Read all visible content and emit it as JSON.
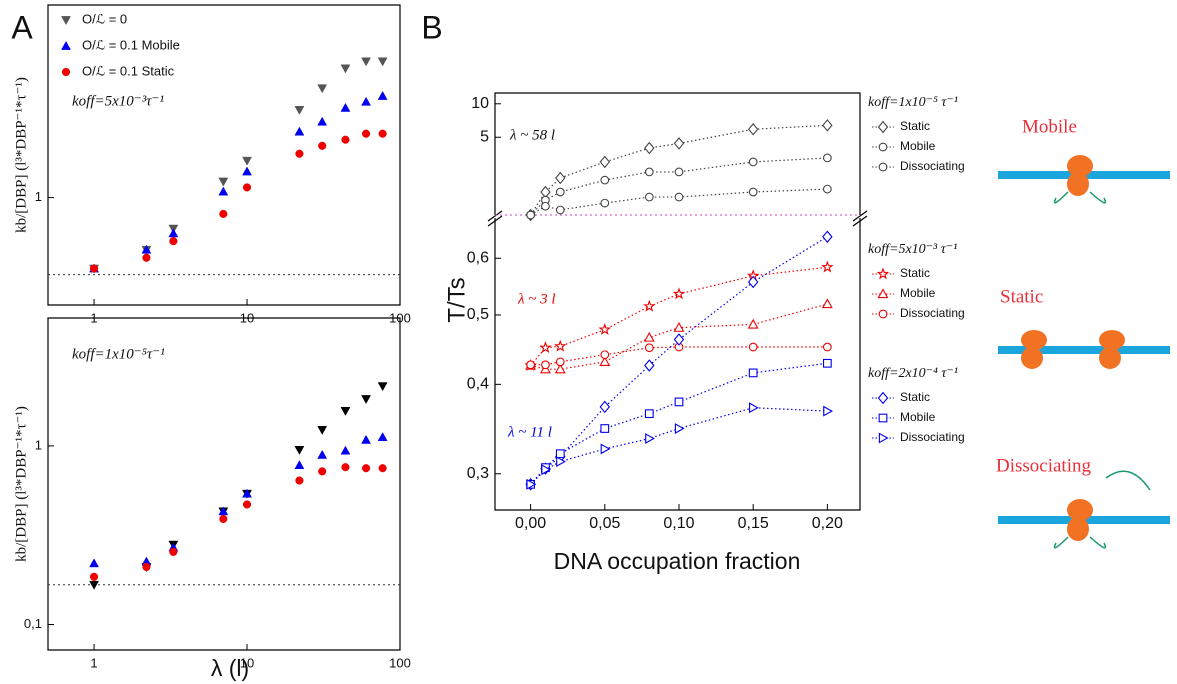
{
  "panel_labels": [
    "A",
    "B"
  ],
  "diagram": {
    "labels": [
      "Mobile",
      "Static",
      "Dissociating"
    ]
  },
  "chart_data": [
    {
      "type": "scatter",
      "xscale": "log",
      "yscale": "log",
      "x": [
        1,
        2.2,
        3.3,
        7,
        10,
        22,
        31,
        44,
        60,
        77
      ],
      "xlim": [
        0.5,
        100
      ],
      "ylim": [
        0.25,
        12
      ],
      "xticks": [
        1,
        10,
        100
      ],
      "yticks": [
        1
      ],
      "ylabel": "kb/[DBP] (l³*DBP⁻¹*τ⁻¹)",
      "annotation": "koff=5x10⁻³τ⁻¹",
      "hline": 0.37,
      "legend": "upper left",
      "series": [
        {
          "name": "O/ℒ = 0",
          "color": "#555555",
          "marker": "triangle-down",
          "values": [
            0.4,
            0.51,
            0.67,
            1.23,
            1.61,
            3.1,
            4.1,
            5.3,
            5.8,
            5.8
          ]
        },
        {
          "name": "O/ℒ = 0.1 Mobile",
          "color": "#0000ee",
          "marker": "triangle-up",
          "values": [
            0.4,
            0.51,
            0.63,
            1.08,
            1.4,
            2.34,
            2.66,
            3.18,
            3.44,
            3.71
          ]
        },
        {
          "name": "O/ℒ = 0.1 Static",
          "color": "#ee0000",
          "marker": "circle",
          "values": [
            0.4,
            0.46,
            0.57,
            0.81,
            1.14,
            1.76,
            1.95,
            2.11,
            2.28,
            2.28
          ]
        }
      ]
    },
    {
      "type": "scatter",
      "xscale": "log",
      "yscale": "log",
      "x": [
        1,
        2.2,
        3.3,
        7,
        10,
        22,
        31,
        44,
        60,
        77
      ],
      "xlim": [
        0.5,
        100
      ],
      "ylim": [
        0.072,
        5.2
      ],
      "xticks": [
        1,
        10,
        100
      ],
      "yticks": [
        {
          "value": 0.1,
          "label": "0,1"
        },
        1
      ],
      "xlabel": "λ (l)",
      "ylabel": "kb/[DBP] (l³*DBP⁻¹*τ⁻¹)",
      "annotation": "koff=1x10⁻⁵τ⁻¹",
      "hline": 0.167,
      "series": [
        {
          "color": "#000000",
          "marker": "triangle-down",
          "values": [
            0.167,
            0.21,
            0.28,
            0.43,
            0.54,
            0.95,
            1.23,
            1.57,
            1.83,
            2.16
          ]
        },
        {
          "color": "#0000ee",
          "marker": "triangle-up",
          "values": [
            0.22,
            0.225,
            0.27,
            0.43,
            0.54,
            0.78,
            0.89,
            0.94,
            1.08,
            1.12
          ]
        },
        {
          "color": "#ee0000",
          "marker": "circle",
          "values": [
            0.185,
            0.21,
            0.255,
            0.39,
            0.47,
            0.64,
            0.72,
            0.76,
            0.75,
            0.75
          ]
        }
      ]
    },
    {
      "type": "line",
      "yscale": "log",
      "x": [
        0,
        0.01,
        0.02,
        0.05,
        0.08,
        0.1,
        0.15,
        0.2
      ],
      "xlim": [
        -0.024,
        0.222
      ],
      "ylim": [
        1,
        12.5
      ],
      "yticks": [
        5,
        10
      ],
      "hline": 1,
      "legend_title": "koff=1x10⁻⁵ τ⁻¹",
      "annotation": "λ ~ 58 l",
      "series": [
        {
          "name": "Static",
          "color": "#444444",
          "marker": "diamond",
          "values": [
            1.0,
            1.61,
            2.15,
            3.0,
            4.0,
            4.4,
            5.9,
            6.4
          ]
        },
        {
          "name": "Mobile",
          "color": "#444444",
          "marker": "circle",
          "values": [
            1.0,
            1.36,
            1.61,
            2.06,
            2.44,
            2.44,
            3.0,
            3.26
          ]
        },
        {
          "name": "Dissociating",
          "color": "#444444",
          "marker": "circle",
          "values": [
            1.0,
            1.2,
            1.11,
            1.28,
            1.45,
            1.45,
            1.61,
            1.71
          ]
        }
      ]
    },
    {
      "type": "line",
      "yscale": "log",
      "x": [
        0,
        0.01,
        0.02,
        0.05,
        0.08,
        0.1,
        0.15,
        0.2
      ],
      "xlim": [
        -0.024,
        0.222
      ],
      "ylim": [
        0.267,
        0.683
      ],
      "xticks": [
        {
          "value": 0,
          "label": "0,00"
        },
        {
          "value": 0.05,
          "label": "0,05"
        },
        {
          "value": 0.1,
          "label": "0,10"
        },
        {
          "value": 0.15,
          "label": "0,15"
        },
        {
          "value": 0.2,
          "label": "0,20"
        }
      ],
      "yticks": [
        {
          "value": 0.3,
          "label": "0,3"
        },
        {
          "value": 0.4,
          "label": "0,4"
        },
        {
          "value": 0.5,
          "label": "0,5"
        },
        {
          "value": 0.6,
          "label": "0,6"
        }
      ],
      "xlabel": "DNA occupation fraction",
      "ylabel": "T/Ts",
      "series_groups": [
        {
          "title": "koff=5x10⁻³ τ⁻¹",
          "annotation": "λ ~ 3 l",
          "series": [
            {
              "name": "Static",
              "color": "#ee0000",
              "marker": "star",
              "values": [
                0.425,
                0.45,
                0.452,
                0.477,
                0.514,
                0.535,
                0.567,
                0.583
              ]
            },
            {
              "name": "Mobile",
              "color": "#ee0000",
              "marker": "triangle-up",
              "values": [
                0.425,
                0.42,
                0.42,
                0.43,
                0.465,
                0.48,
                0.485,
                0.518
              ]
            },
            {
              "name": "Dissociating",
              "color": "#ee0000",
              "marker": "circle",
              "values": [
                0.426,
                0.426,
                0.43,
                0.44,
                0.45,
                0.451,
                0.451,
                0.451
              ]
            }
          ]
        },
        {
          "title": "koff=2x10⁻⁴ τ⁻¹",
          "annotation": "λ ~ 11 l",
          "series": [
            {
              "name": "Static",
              "color": "#0000ee",
              "marker": "diamond",
              "values": [
                0.29,
                0.305,
                0.317,
                0.372,
                0.425,
                0.462,
                0.556,
                0.643
              ]
            },
            {
              "name": "Mobile",
              "color": "#0000ee",
              "marker": "square",
              "values": [
                0.29,
                0.306,
                0.32,
                0.347,
                0.364,
                0.378,
                0.415,
                0.428
              ]
            },
            {
              "name": "Dissociating",
              "color": "#0000ee",
              "marker": "triangle-right",
              "values": [
                0.29,
                0.304,
                0.312,
                0.325,
                0.336,
                0.347,
                0.371,
                0.367
              ]
            }
          ]
        }
      ]
    }
  ]
}
